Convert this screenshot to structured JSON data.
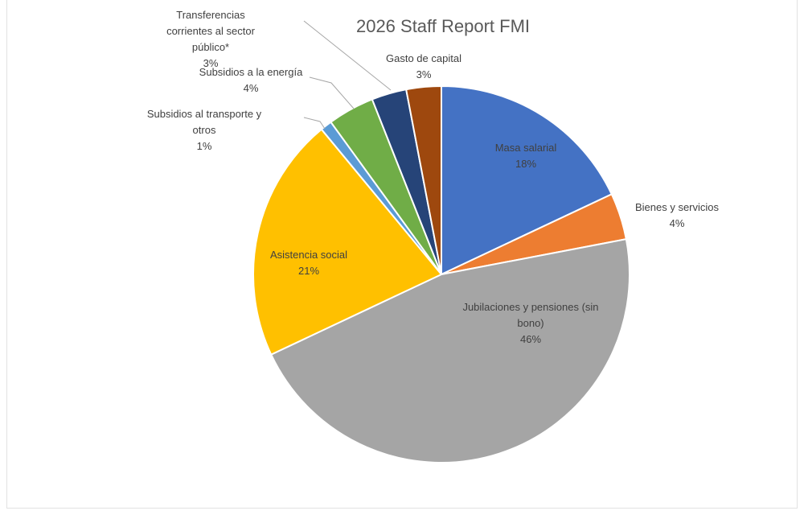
{
  "chart_data": {
    "type": "pie",
    "title": "2026 Staff Report FMI",
    "slices": [
      {
        "label": [
          "Masa salarial"
        ],
        "pct": "18%",
        "value": 18,
        "color": "#4472C4"
      },
      {
        "label": [
          "Bienes y servicios"
        ],
        "pct": "4%",
        "value": 4,
        "color": "#ED7D31"
      },
      {
        "label": [
          "Jubilaciones y pensiones (sin",
          "bono)"
        ],
        "pct": "46%",
        "value": 46,
        "color": "#A5A5A5"
      },
      {
        "label": [
          "Asistencia social"
        ],
        "pct": "21%",
        "value": 21,
        "color": "#FFC000"
      },
      {
        "label": [
          "Subsidios al transporte y",
          "otros"
        ],
        "pct": "1%",
        "value": 1,
        "color": "#5B9BD5"
      },
      {
        "label": [
          "Subsidios a la energía"
        ],
        "pct": "4%",
        "value": 4,
        "color": "#70AD47"
      },
      {
        "label": [
          "Transferencias",
          "corrientes al sector",
          "público*"
        ],
        "pct": "3%",
        "value": 3,
        "color": "#264478"
      },
      {
        "label": [
          "Gasto de capital"
        ],
        "pct": "3%",
        "value": 3,
        "color": "#9E480E"
      }
    ]
  }
}
